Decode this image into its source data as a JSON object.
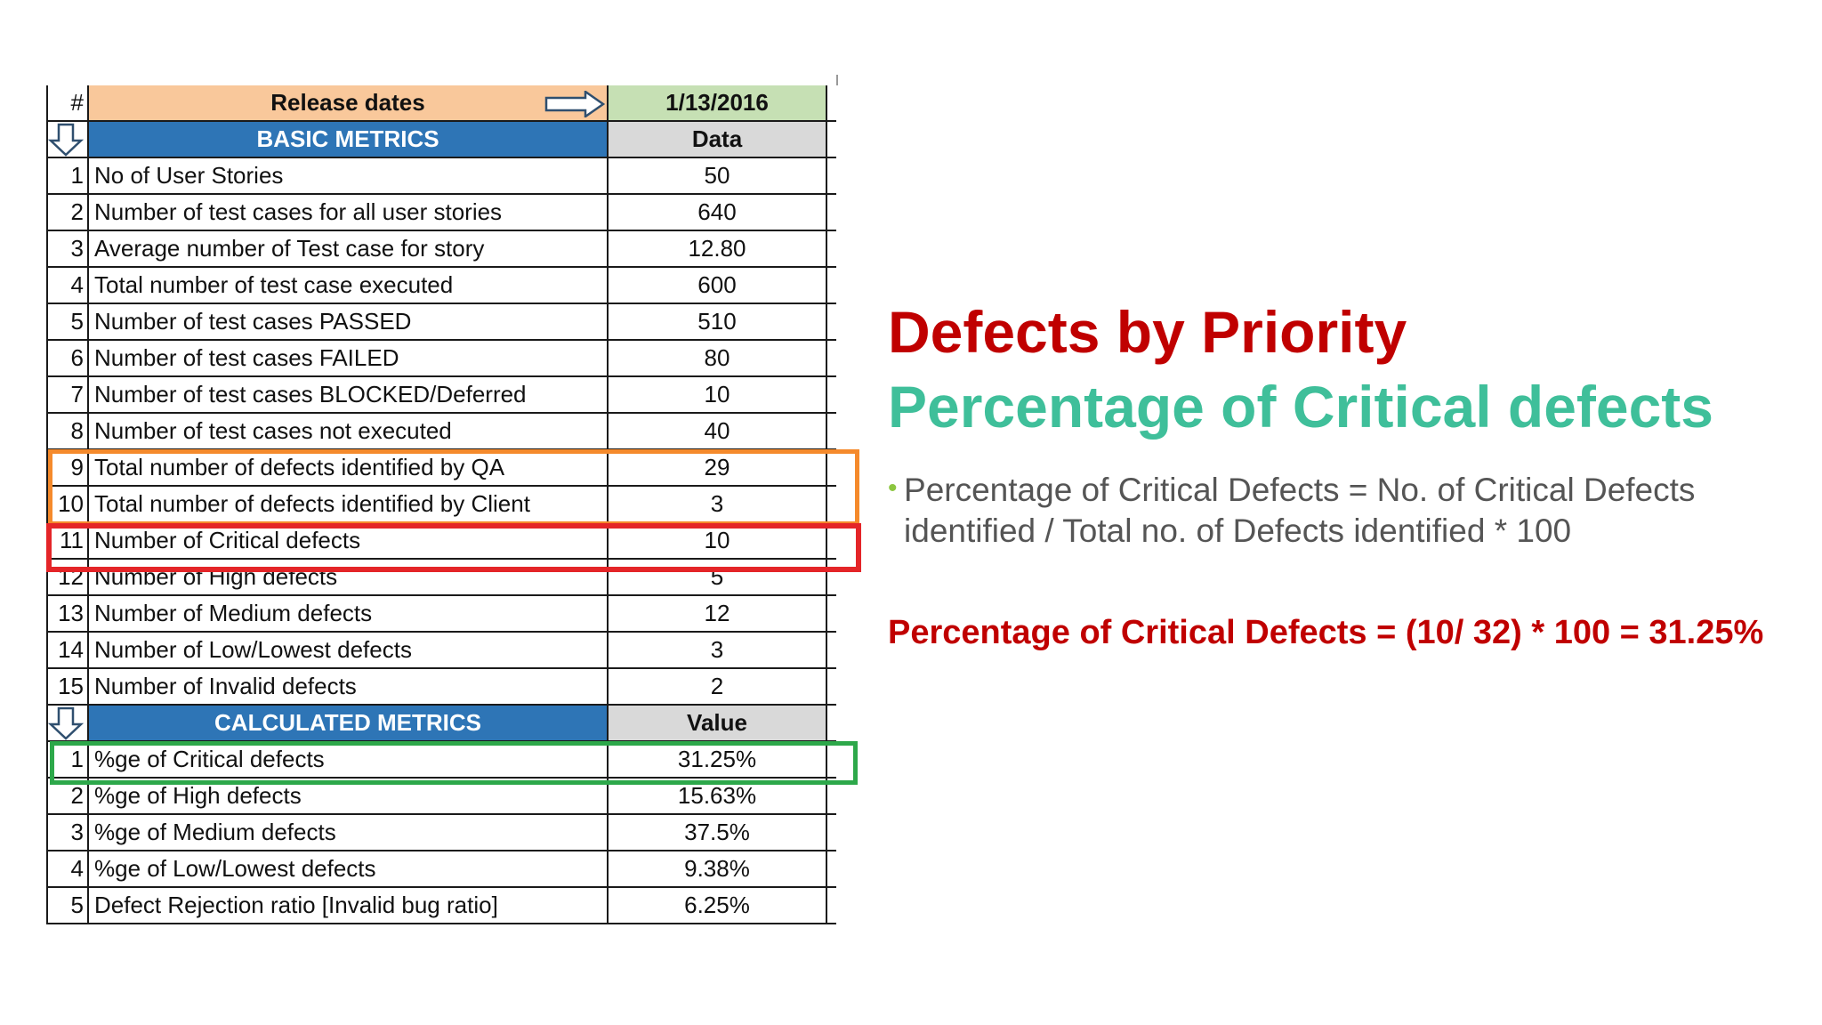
{
  "spreadsheet": {
    "header": {
      "num": "#",
      "label": "Release dates",
      "value": "1/13/2016"
    },
    "basic_section": {
      "label": "BASIC METRICS",
      "value": "Data"
    },
    "basic_rows": [
      {
        "num": "1",
        "label": "No of User Stories",
        "value": "50"
      },
      {
        "num": "2",
        "label": "Number  of test cases for all user stories",
        "value": "640"
      },
      {
        "num": "3",
        "label": "Average number of Test case for story",
        "value": "12.80"
      },
      {
        "num": "4",
        "label": "Total number of test case executed",
        "value": "600"
      },
      {
        "num": "5",
        "label": "Number of test cases PASSED",
        "value": "510"
      },
      {
        "num": "6",
        "label": "Number of  test cases FAILED",
        "value": "80"
      },
      {
        "num": "7",
        "label": "Number of test cases BLOCKED/Deferred",
        "value": "10"
      },
      {
        "num": "8",
        "label": "Number of test cases not executed",
        "value": "40"
      },
      {
        "num": "9",
        "label": "Total number of defects identified by QA",
        "value": "29"
      },
      {
        "num": "10",
        "label": "Total number of defects identified by Client",
        "value": "3"
      },
      {
        "num": "11",
        "label": "Number of Critical defects",
        "value": "10"
      },
      {
        "num": "12",
        "label": "Number of High defects",
        "value": "5"
      },
      {
        "num": "13",
        "label": "Number of Medium defects",
        "value": "12"
      },
      {
        "num": "14",
        "label": "Number of Low/Lowest defects",
        "value": "3"
      },
      {
        "num": "15",
        "label": "Number of Invalid defects",
        "value": "2"
      }
    ],
    "calc_section": {
      "label": "CALCULATED METRICS",
      "value": "Value"
    },
    "calc_rows": [
      {
        "num": "1",
        "label": "%ge of Critical defects",
        "value": "31.25%"
      },
      {
        "num": "2",
        "label": "%ge of High defects",
        "value": "15.63%"
      },
      {
        "num": "3",
        "label": "%ge of Medium defects",
        "value": "37.5%"
      },
      {
        "num": "4",
        "label": "%ge of Low/Lowest defects",
        "value": "9.38%"
      },
      {
        "num": "5",
        "label": "Defect Rejection ratio [Invalid bug ratio]",
        "value": "6.25%"
      }
    ]
  },
  "slide": {
    "title": "Defects by Priority",
    "subtitle": "Percentage of Critical defects",
    "bullet": "Percentage of Critical Defects = No. of Critical Defects identified / Total no. of Defects identified * 100",
    "formula": "Percentage of Critical Defects = (10/ 32) * 100 = 31.25%"
  },
  "colors": {
    "title": "#c00000",
    "subtitle": "#3fbf9a",
    "bullet_dot": "#8cc63f",
    "header_orange": "#f9c89b",
    "header_green": "#c6e0b4",
    "section_blue": "#2e75b6",
    "highlight_orange": "#f58a2c",
    "highlight_red": "#e42528",
    "highlight_green": "#2da84a"
  },
  "icons": [
    "arrow-right-icon",
    "arrow-down-icon"
  ]
}
